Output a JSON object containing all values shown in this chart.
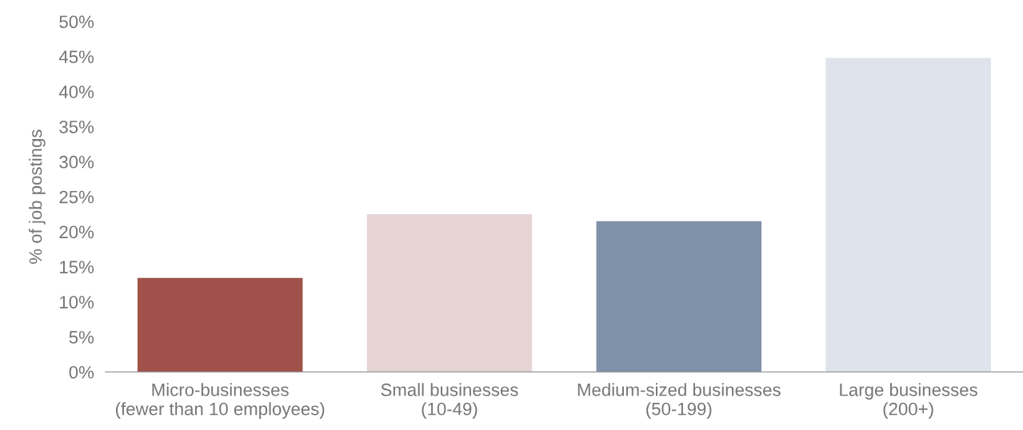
{
  "chart_data": {
    "type": "bar",
    "ylabel": "% of job postings",
    "categories": [
      "Micro-businesses\n(fewer than 10 employees)",
      "Small businesses\n(10-49)",
      "Medium-sized businesses\n(50-199)",
      "Large businesses\n(200+)"
    ],
    "values": [
      13.4,
      22.5,
      21.5,
      44.8
    ],
    "colors": [
      "#a0524a",
      "#e7d5d5",
      "#8091aa",
      "#dfe3eb"
    ],
    "ylim": [
      0,
      50
    ],
    "yticks": [
      {
        "value": 0,
        "label": "0%"
      },
      {
        "value": 5,
        "label": "5%"
      },
      {
        "value": 10,
        "label": "10%"
      },
      {
        "value": 15,
        "label": "15%"
      },
      {
        "value": 20,
        "label": "20%"
      },
      {
        "value": 25,
        "label": "25%"
      },
      {
        "value": 30,
        "label": "30%"
      },
      {
        "value": 35,
        "label": "35%"
      },
      {
        "value": 40,
        "label": "40%"
      },
      {
        "value": 45,
        "label": "45%"
      },
      {
        "value": 50,
        "label": "50%"
      }
    ],
    "grid": false,
    "legend": false
  }
}
